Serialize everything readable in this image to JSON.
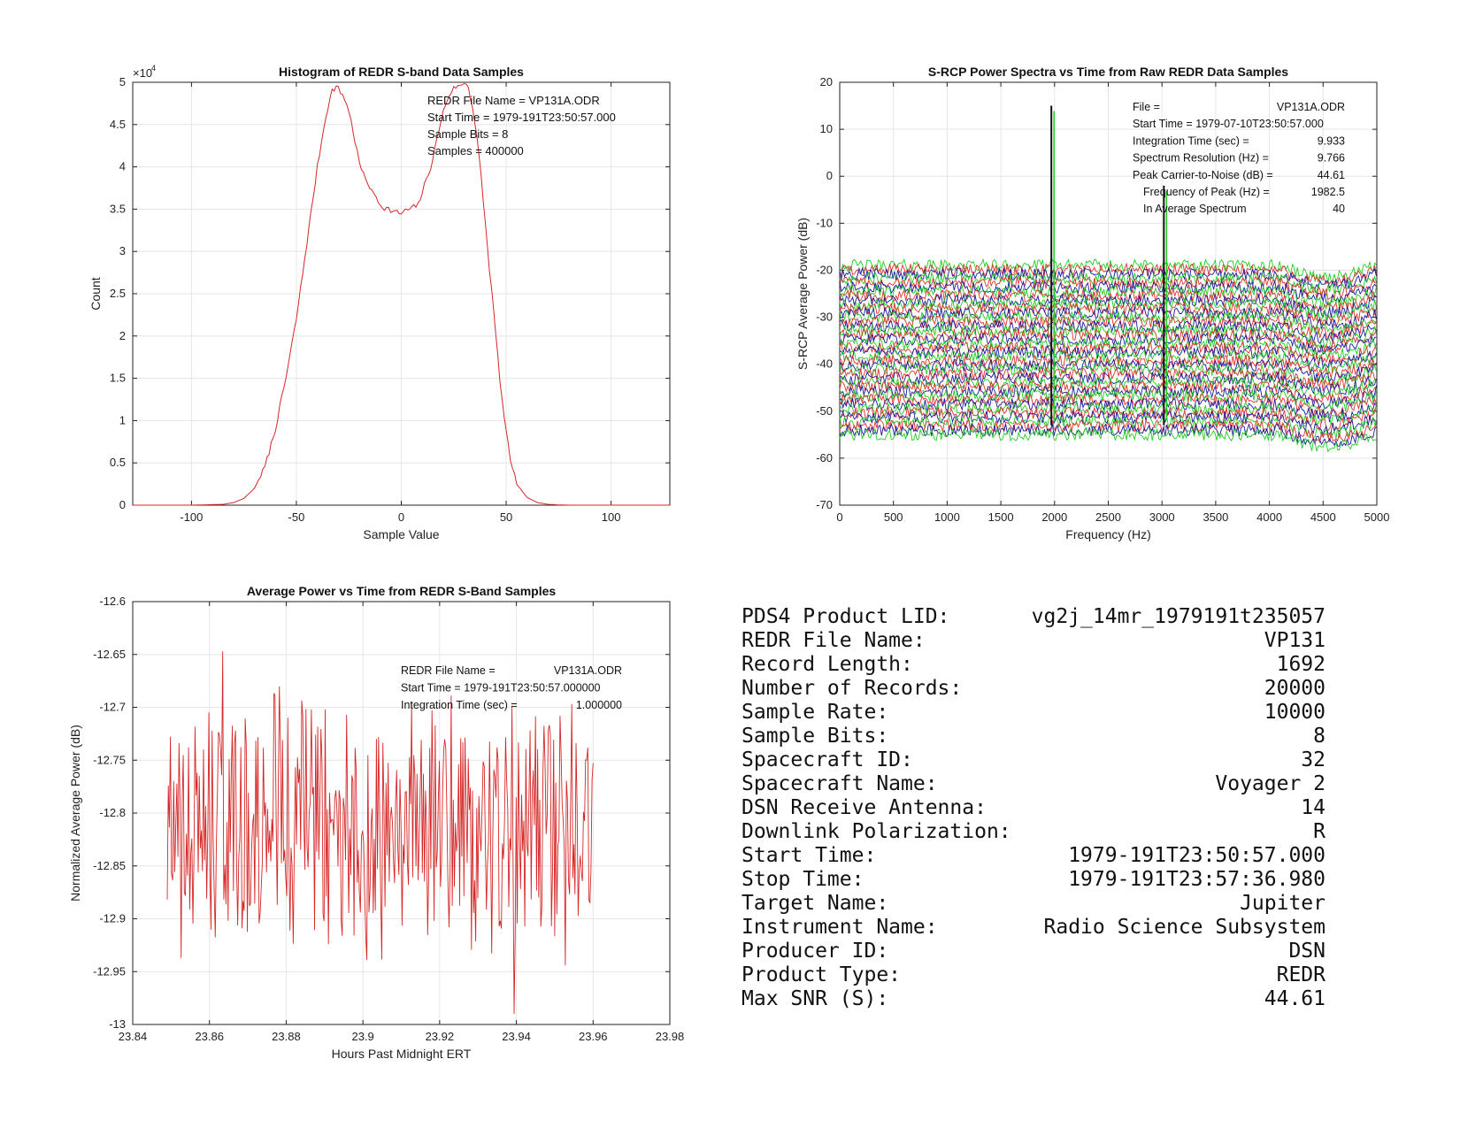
{
  "colors": {
    "hist_line": "#d62728",
    "power_line": "#d62728",
    "spec_green": "#22cc22",
    "spec_red": "#e03030",
    "spec_blue": "#1a1a9c",
    "spec_black": "#111111",
    "axis": "#222222",
    "grid": "#e6e6e6"
  },
  "chart_data": [
    {
      "type": "line",
      "title": "Histogram of REDR S-band Data Samples",
      "xlabel": "Sample Value",
      "ylabel": "Count",
      "exponent_label": "×10",
      "exponent_power": "4",
      "xlim": [
        -128,
        128
      ],
      "ylim": [
        0,
        50000
      ],
      "xticks": [
        -100,
        -50,
        0,
        50,
        100
      ],
      "yticks": [
        0,
        0.5,
        1,
        1.5,
        2,
        2.5,
        3,
        3.5,
        4,
        4.5,
        5
      ],
      "grid": true,
      "annotations": [
        "REDR File Name = VP131A.ODR",
        "Start Time = 1979-191T23:50:57.000",
        "Sample Bits = 8",
        "Samples = 400000"
      ],
      "series": [
        {
          "x": [
            -128,
            -100,
            -85,
            -80,
            -75,
            -70,
            -65,
            -60,
            -55,
            -50,
            -45,
            -40,
            -36,
            -33,
            -31,
            -30,
            -28,
            -26,
            -24,
            -22,
            -20,
            -18,
            -16,
            -14,
            -12,
            -10,
            -8,
            -6,
            -4,
            -2,
            0,
            2,
            4,
            6,
            8,
            10,
            12,
            14,
            16,
            18,
            20,
            22,
            24,
            26,
            28,
            30,
            32,
            34,
            36,
            38,
            40,
            42,
            44,
            46,
            48,
            50,
            52,
            55,
            60,
            65,
            70,
            75,
            80,
            90,
            100,
            128
          ],
          "values": [
            0,
            0,
            100,
            300,
            800,
            2000,
            4500,
            9000,
            15000,
            22000,
            31000,
            40000,
            46000,
            49000,
            49500,
            49200,
            48500,
            47500,
            45500,
            43000,
            40500,
            39000,
            38200,
            37000,
            36500,
            35500,
            35200,
            35000,
            34700,
            34600,
            34500,
            34800,
            35000,
            35200,
            35500,
            37000,
            38500,
            40000,
            42000,
            44500,
            46500,
            48000,
            49000,
            49500,
            49500,
            50000,
            49500,
            47000,
            43500,
            39000,
            33500,
            28000,
            23000,
            17500,
            12500,
            8500,
            5500,
            2500,
            900,
            300,
            100,
            30,
            0,
            0,
            0,
            0
          ]
        }
      ]
    },
    {
      "type": "line",
      "title": "S-RCP Power Spectra vs Time from Raw REDR Data Samples",
      "xlabel": "Frequency (Hz)",
      "ylabel": "S-RCP Average Power (dB)",
      "xlim": [
        0,
        5000
      ],
      "ylim": [
        -70,
        20
      ],
      "xticks": [
        0,
        500,
        1000,
        1500,
        2000,
        2500,
        3000,
        3500,
        4000,
        4500,
        5000
      ],
      "yticks": [
        -70,
        -60,
        -50,
        -40,
        -30,
        -20,
        -10,
        0,
        10,
        20
      ],
      "grid": true,
      "stacked_trace_count": 40,
      "trace_offset_range_db": [
        -19,
        -55
      ],
      "peaks": [
        {
          "frequency": 1982.5,
          "power": 15
        },
        {
          "frequency": 3030,
          "power": -2
        }
      ],
      "annotation_rows": [
        {
          "label": "File =",
          "value": "VP131A.ODR"
        },
        {
          "label": "Start Time = 1979-07-10T23:50:57.000",
          "value": ""
        },
        {
          "label": "Integration Time (sec) =",
          "value": "9.933"
        },
        {
          "label": "Spectrum Resolution (Hz) =",
          "value": "9.766"
        },
        {
          "label": "Peak Carrier-to-Noise (dB) =",
          "value": "44.61"
        },
        {
          "label": "Frequency of Peak (Hz) =",
          "value": "1982.5"
        },
        {
          "label": "In Average Spectrum",
          "value": "40"
        }
      ]
    },
    {
      "type": "line",
      "title": "Average Power vs Time from REDR S-Band Samples",
      "xlabel": "Hours Past Midnight ERT",
      "ylabel": "Normalized Average Power (dB)",
      "xlim": [
        23.84,
        23.98
      ],
      "ylim": [
        -13,
        -12.6
      ],
      "xticks": [
        23.84,
        23.86,
        23.88,
        23.9,
        23.92,
        23.94,
        23.96,
        23.98
      ],
      "xtick_labels": [
        "23.84",
        "23.86",
        "23.88",
        "23.9",
        "23.92",
        "23.94",
        "23.96",
        "23.98"
      ],
      "yticks": [
        -13,
        -12.95,
        -12.9,
        -12.85,
        -12.8,
        -12.75,
        -12.7,
        -12.65,
        -12.6
      ],
      "ytick_labels": [
        "-13",
        "-12.95",
        "-12.9",
        "-12.85",
        "-12.8",
        "-12.75",
        "-12.7",
        "-12.65",
        "-12.6"
      ],
      "grid": true,
      "x_range": [
        23.849,
        23.96
      ],
      "samples": 400,
      "min_value": -12.99,
      "max_value": -12.647,
      "annotation_rows": [
        {
          "label": "REDR File Name =",
          "value": "VP131A.ODR"
        },
        {
          "label": "Start Time = 1979-191T23:50:57.000000",
          "value": ""
        },
        {
          "label": "Integration Time (sec) =",
          "value": "1.000000"
        }
      ]
    }
  ],
  "info_table": [
    {
      "label": "PDS4 Product LID:",
      "value": "vg2j_14mr_1979191t235057"
    },
    {
      "label": "REDR File Name:",
      "value": "VP131"
    },
    {
      "label": "Record Length:",
      "value": "1692"
    },
    {
      "label": "Number of Records:",
      "value": "20000"
    },
    {
      "label": "Sample Rate:",
      "value": "10000"
    },
    {
      "label": "Sample Bits:",
      "value": "8"
    },
    {
      "label": "Spacecraft ID:",
      "value": "32"
    },
    {
      "label": "Spacecraft Name:",
      "value": "Voyager 2"
    },
    {
      "label": "DSN Receive Antenna:",
      "value": "14"
    },
    {
      "label": "Downlink Polarization:",
      "value": "R"
    },
    {
      "label": "Start Time:",
      "value": "1979-191T23:50:57.000"
    },
    {
      "label": "Stop Time:",
      "value": "1979-191T23:57:36.980"
    },
    {
      "label": "Target Name:",
      "value": "Jupiter"
    },
    {
      "label": "Instrument Name:",
      "value": "Radio Science Subsystem"
    },
    {
      "label": "Producer ID:",
      "value": "DSN"
    },
    {
      "label": "Product Type:",
      "value": "REDR"
    },
    {
      "label": "Max SNR (S):",
      "value": "44.61"
    }
  ]
}
